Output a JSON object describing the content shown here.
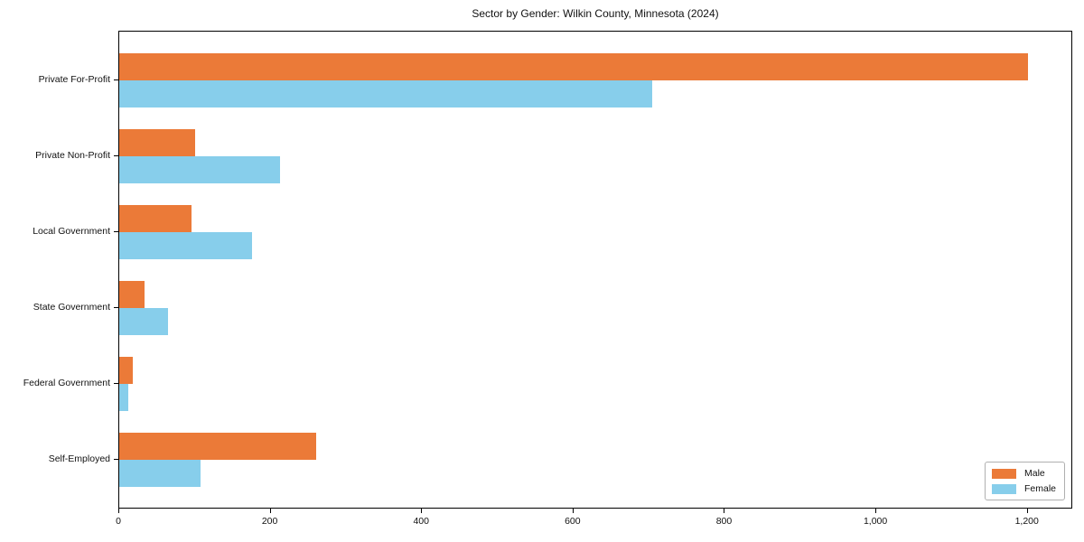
{
  "title": "Sector by Gender: Wilkin County, Minnesota (2024)",
  "colors": {
    "male": "#EB7A38",
    "female": "#87CEEB",
    "axis": "#000000",
    "legend_border": "#b0b0b0",
    "background": "#ffffff"
  },
  "chart_data": {
    "type": "bar",
    "orientation": "horizontal",
    "title": "Sector by Gender: Wilkin County, Minnesota (2024)",
    "xlabel": "",
    "ylabel": "",
    "categories": [
      "Private For-Profit",
      "Private Non-Profit",
      "Local Government",
      "State Government",
      "Federal Government",
      "Self-Employed"
    ],
    "series": [
      {
        "name": "Male",
        "color": "#EB7A38",
        "values": [
          1200,
          100,
          96,
          34,
          18,
          260
        ]
      },
      {
        "name": "Female",
        "color": "#87CEEB",
        "values": [
          704,
          212,
          175,
          65,
          12,
          107
        ]
      }
    ],
    "xlim": [
      0,
      1260
    ],
    "xticks": [
      0,
      200,
      400,
      600,
      800,
      1000,
      1200
    ],
    "xtick_labels": [
      "0",
      "200",
      "400",
      "600",
      "800",
      "1,000",
      "1,200"
    ],
    "grid": false,
    "legend_position": "lower right"
  }
}
